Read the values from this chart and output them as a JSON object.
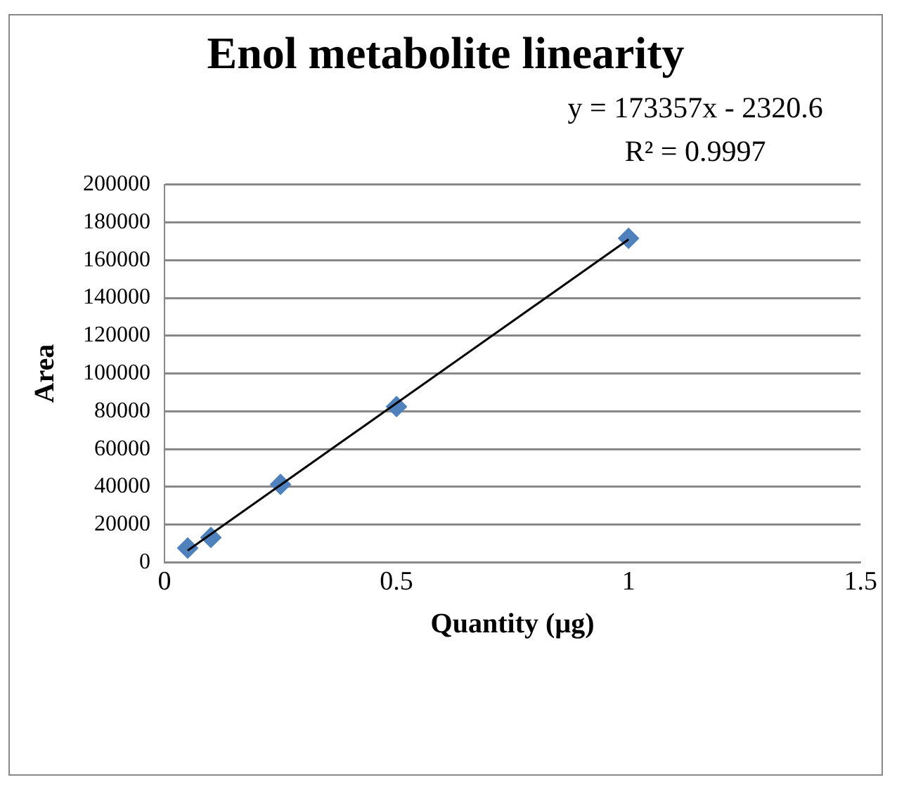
{
  "chart_data": {
    "type": "scatter",
    "title": "Enol metabolite linearity",
    "xlabel": "Quantity (µg)",
    "ylabel": "Area",
    "annotations": [
      "y = 173357x - 2320.6",
      "R² = 0.9997"
    ],
    "series": [
      {
        "color": "#4f81bd",
        "x": [
          0.05,
          0.1,
          0.25,
          0.5,
          1
        ],
        "values": [
          7600,
          13200,
          41300,
          82500,
          171600
        ],
        "marker": "diamond"
      },
      {
        "type": "line",
        "color": "#000000",
        "x": [
          0.05,
          1
        ],
        "values": [
          6300,
          171000
        ],
        "marker": "none",
        "line_style": "solid"
      }
    ],
    "xlim": [
      0,
      1.5
    ],
    "xticks": [
      0,
      0.5,
      1,
      1.5
    ],
    "ylim": [
      0,
      200000
    ],
    "yticks": [
      0,
      20000,
      40000,
      60000,
      80000,
      100000,
      120000,
      140000,
      160000,
      180000,
      200000
    ],
    "grid": "y",
    "legend": false
  }
}
